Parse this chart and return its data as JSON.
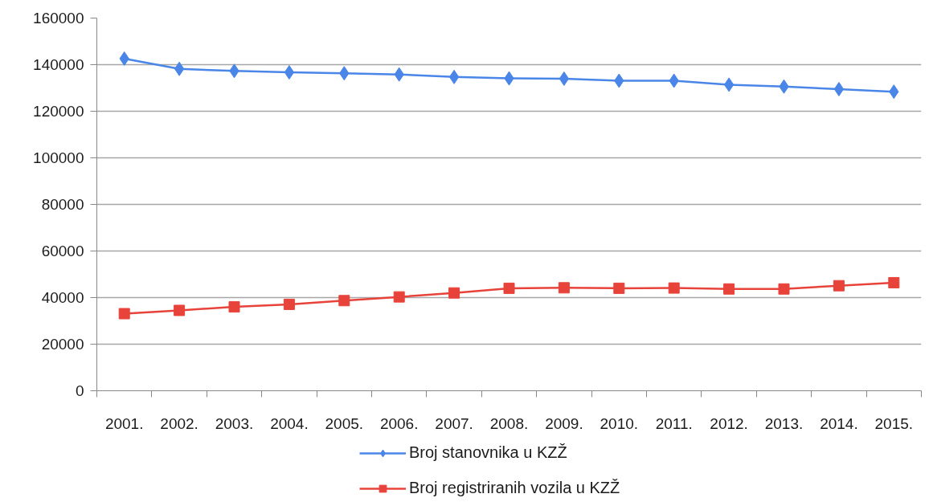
{
  "chart_data": {
    "type": "line",
    "categories": [
      "2001.",
      "2002.",
      "2003.",
      "2004.",
      "2005.",
      "2006.",
      "2007.",
      "2008.",
      "2009.",
      "2010.",
      "2011.",
      "2012.",
      "2013.",
      "2014.",
      "2015."
    ],
    "ylim": [
      0,
      160000
    ],
    "yticks": [
      0,
      20000,
      40000,
      60000,
      80000,
      100000,
      120000,
      140000,
      160000
    ],
    "grid": "y",
    "legend": "bottom",
    "line_style": "solid",
    "series": [
      {
        "name": "Broj stanovnika u KZŽ",
        "color": "#4a86e8",
        "marker": "diamond",
        "values": [
          142600,
          138200,
          137300,
          136700,
          136300,
          135800,
          134700,
          134100,
          134000,
          133100,
          133100,
          131400,
          130600,
          129500,
          128400
        ]
      },
      {
        "name": "Broj registriranih vozila u KZŽ",
        "color": "#e8433a",
        "marker": "square",
        "values": [
          33100,
          34500,
          36000,
          37100,
          38700,
          40300,
          42000,
          44000,
          44200,
          44000,
          44100,
          43700,
          43700,
          45100,
          46400
        ]
      }
    ]
  }
}
